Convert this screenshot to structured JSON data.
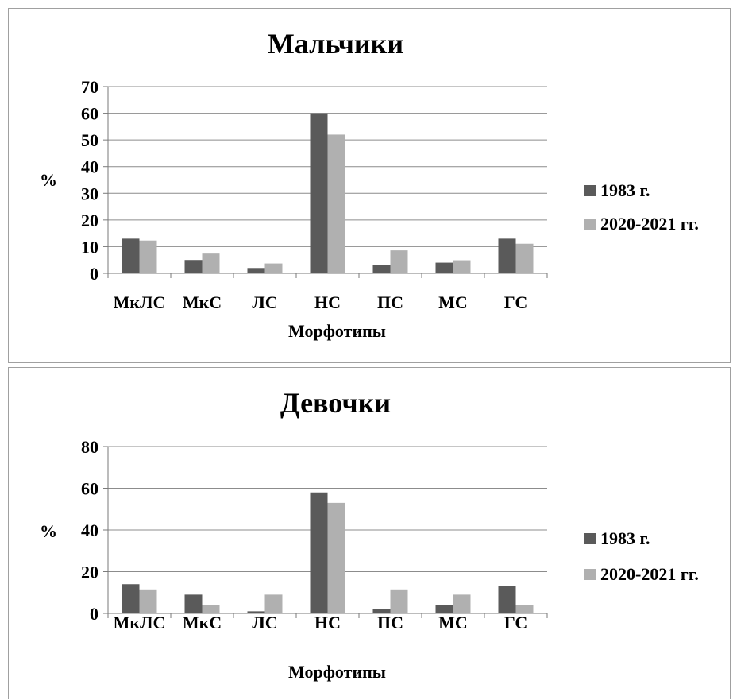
{
  "chart_data": [
    {
      "type": "bar",
      "title": "Мальчики",
      "xlabel": "Морфотипы",
      "ylabel": "%",
      "ylim": [
        0,
        70
      ],
      "yticks": [
        0,
        10,
        20,
        30,
        40,
        50,
        60,
        70
      ],
      "categories": [
        "МкЛС",
        "МкС",
        "ЛС",
        "НС",
        "ПС",
        "МС",
        "ГС"
      ],
      "series": [
        {
          "name": "1983 г.",
          "color": "#5a5a5a",
          "values": [
            13,
            5,
            2,
            60,
            3,
            4,
            13
          ]
        },
        {
          "name": "2020-2021 гг.",
          "color": "#b0b0b0",
          "values": [
            12.3,
            7.4,
            3.7,
            52,
            8.6,
            4.9,
            11.1
          ]
        }
      ],
      "grid": true,
      "legend_position": "right"
    },
    {
      "type": "bar",
      "title": "Девочки",
      "xlabel": "Морфотипы",
      "ylabel": "%",
      "ylim": [
        0,
        80
      ],
      "yticks": [
        0,
        20,
        40,
        60,
        80
      ],
      "categories": [
        "МкЛС",
        "МкС",
        "ЛС",
        "НС",
        "ПС",
        "МС",
        "ГС"
      ],
      "series": [
        {
          "name": "1983 г.",
          "color": "#5a5a5a",
          "values": [
            14,
            9,
            1,
            58,
            2,
            4,
            13
          ]
        },
        {
          "name": "2020-2021 гг.",
          "color": "#b0b0b0",
          "values": [
            11.5,
            4,
            9,
            53,
            11.5,
            9,
            4
          ]
        }
      ],
      "grid": true,
      "legend_position": "right"
    }
  ]
}
